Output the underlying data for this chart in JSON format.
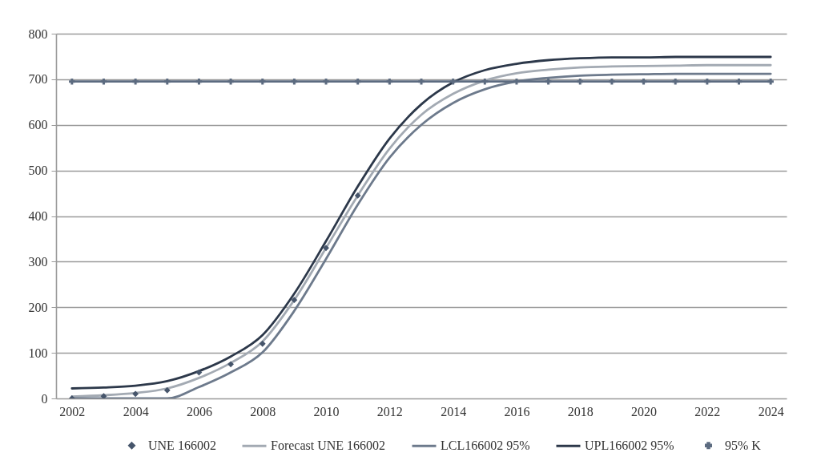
{
  "chart_data": {
    "type": "line",
    "x": [
      2002,
      2003,
      2004,
      2005,
      2006,
      2007,
      2008,
      2009,
      2010,
      2011,
      2012,
      2013,
      2014,
      2015,
      2016,
      2017,
      2018,
      2019,
      2020,
      2021,
      2022,
      2023,
      2024
    ],
    "xlim": [
      2001.5,
      2024.5
    ],
    "xticks": [
      2002,
      2004,
      2006,
      2008,
      2010,
      2012,
      2014,
      2016,
      2018,
      2020,
      2022,
      2024
    ],
    "ylim": [
      0,
      800
    ],
    "yticks": [
      0,
      100,
      200,
      300,
      400,
      500,
      600,
      700,
      800
    ],
    "grid": "y",
    "legend": "bottom",
    "line_style": "solid",
    "series": [
      {
        "name": "UNE 166002",
        "type": "scatter",
        "marker": "diamond",
        "color": "#46556b",
        "values": [
          0,
          5,
          10,
          18,
          57,
          75,
          120,
          216,
          330,
          445,
          null,
          null,
          null,
          null,
          null,
          null,
          null,
          null,
          null,
          null,
          null,
          null,
          null
        ]
      },
      {
        "name": "Forecast UNE 166002",
        "type": "line",
        "color": "#a3aab3",
        "values": [
          4,
          7,
          12,
          22,
          45,
          78,
          125,
          216,
          330,
          445,
          548,
          622,
          668,
          697,
          713,
          721,
          726,
          728,
          729,
          730,
          731,
          731,
          731
        ]
      },
      {
        "name": "LCL166002 95%",
        "type": "line",
        "color": "#6d7a8c",
        "values": [
          0,
          0,
          0,
          0,
          25,
          57,
          101,
          192,
          306,
          425,
          528,
          600,
          648,
          678,
          695,
          703,
          708,
          710,
          711,
          712,
          712,
          712,
          712
        ]
      },
      {
        "name": "UPL166002 95%",
        "type": "line",
        "color": "#2c384a",
        "values": [
          22,
          24,
          28,
          38,
          60,
          92,
          139,
          230,
          345,
          465,
          570,
          645,
          693,
          720,
          734,
          742,
          746,
          748,
          748,
          749,
          749,
          749,
          749
        ]
      },
      {
        "name": "95% K",
        "type": "line",
        "marker": "cross",
        "color": "#5c6b80",
        "values": [
          695,
          695,
          695,
          695,
          695,
          695,
          695,
          695,
          695,
          695,
          695,
          695,
          695,
          695,
          695,
          695,
          695,
          695,
          695,
          695,
          695,
          695,
          695
        ]
      }
    ]
  }
}
